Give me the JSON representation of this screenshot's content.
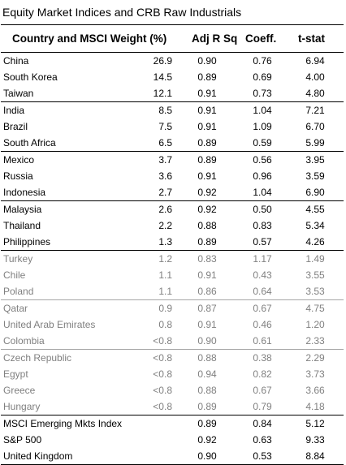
{
  "title": "Equity Market Indices and CRB Raw Industrials",
  "headers": {
    "country": "Country and MSCI Weight (%)",
    "adj_r_sq": "Adj R Sq.",
    "coeff": "Coeff.",
    "t_stat": "t-stat"
  },
  "rows": [
    {
      "country": "China",
      "weight": "26.9",
      "adj_r_sq": "0.90",
      "coeff": "0.76",
      "t_stat": "6.94",
      "style": "normal",
      "separator": "none"
    },
    {
      "country": "South Korea",
      "weight": "14.5",
      "adj_r_sq": "0.89",
      "coeff": "0.69",
      "t_stat": "4.00",
      "style": "normal",
      "separator": "none"
    },
    {
      "country": "Taiwan",
      "weight": "12.1",
      "adj_r_sq": "0.91",
      "coeff": "0.73",
      "t_stat": "4.80",
      "style": "normal",
      "separator": "none"
    },
    {
      "country": "India",
      "weight": "8.5",
      "adj_r_sq": "0.91",
      "coeff": "1.04",
      "t_stat": "7.21",
      "style": "normal",
      "separator": "line"
    },
    {
      "country": "Brazil",
      "weight": "7.5",
      "adj_r_sq": "0.91",
      "coeff": "1.09",
      "t_stat": "6.70",
      "style": "normal",
      "separator": "none"
    },
    {
      "country": "South Africa",
      "weight": "6.5",
      "adj_r_sq": "0.89",
      "coeff": "0.59",
      "t_stat": "5.99",
      "style": "normal",
      "separator": "none"
    },
    {
      "country": "Mexico",
      "weight": "3.7",
      "adj_r_sq": "0.89",
      "coeff": "0.56",
      "t_stat": "3.95",
      "style": "normal",
      "separator": "line"
    },
    {
      "country": "Russia",
      "weight": "3.6",
      "adj_r_sq": "0.91",
      "coeff": "0.96",
      "t_stat": "3.59",
      "style": "normal",
      "separator": "none"
    },
    {
      "country": "Indonesia",
      "weight": "2.7",
      "adj_r_sq": "0.92",
      "coeff": "1.04",
      "t_stat": "6.90",
      "style": "normal",
      "separator": "none"
    },
    {
      "country": "Malaysia",
      "weight": "2.6",
      "adj_r_sq": "0.92",
      "coeff": "0.50",
      "t_stat": "4.55",
      "style": "normal",
      "separator": "line"
    },
    {
      "country": "Thailand",
      "weight": "2.2",
      "adj_r_sq": "0.88",
      "coeff": "0.83",
      "t_stat": "5.34",
      "style": "normal",
      "separator": "none"
    },
    {
      "country": "Philippines",
      "weight": "1.3",
      "adj_r_sq": "0.89",
      "coeff": "0.57",
      "t_stat": "4.26",
      "style": "normal",
      "separator": "none"
    },
    {
      "country": "Turkey",
      "weight": "1.2",
      "adj_r_sq": "0.83",
      "coeff": "1.17",
      "t_stat": "1.49",
      "style": "grey",
      "separator": "line"
    },
    {
      "country": "Chile",
      "weight": "1.1",
      "adj_r_sq": "0.91",
      "coeff": "0.43",
      "t_stat": "3.55",
      "style": "grey",
      "separator": "none"
    },
    {
      "country": "Poland",
      "weight": "1.1",
      "adj_r_sq": "0.86",
      "coeff": "0.64",
      "t_stat": "3.53",
      "style": "grey",
      "separator": "none"
    },
    {
      "country": "Qatar",
      "weight": "0.9",
      "adj_r_sq": "0.87",
      "coeff": "0.67",
      "t_stat": "4.75",
      "style": "grey",
      "separator": "grey"
    },
    {
      "country": "United Arab Emirates",
      "weight": "0.8",
      "adj_r_sq": "0.91",
      "coeff": "0.46",
      "t_stat": "1.20",
      "style": "grey",
      "separator": "none"
    },
    {
      "country": "Colombia",
      "weight": "<0.8",
      "adj_r_sq": "0.90",
      "coeff": "0.61",
      "t_stat": "2.33",
      "style": "grey",
      "separator": "none"
    },
    {
      "country": "Czech Republic",
      "weight": "<0.8",
      "adj_r_sq": "0.88",
      "coeff": "0.38",
      "t_stat": "2.29",
      "style": "grey",
      "separator": "grey"
    },
    {
      "country": "Egypt",
      "weight": "<0.8",
      "adj_r_sq": "0.94",
      "coeff": "0.82",
      "t_stat": "3.73",
      "style": "grey",
      "separator": "none"
    },
    {
      "country": "Greece",
      "weight": "<0.8",
      "adj_r_sq": "0.88",
      "coeff": "0.67",
      "t_stat": "3.66",
      "style": "grey",
      "separator": "none"
    },
    {
      "country": "Hungary",
      "weight": "<0.8",
      "adj_r_sq": "0.89",
      "coeff": "0.79",
      "t_stat": "4.18",
      "style": "grey",
      "separator": "none"
    },
    {
      "country": "MSCI Emerging Mkts Index",
      "weight": "",
      "adj_r_sq": "0.89",
      "coeff": "0.84",
      "t_stat": "5.12",
      "style": "normal",
      "separator": "bold"
    },
    {
      "country": "S&P 500",
      "weight": "",
      "adj_r_sq": "0.92",
      "coeff": "0.63",
      "t_stat": "9.33",
      "style": "normal",
      "separator": "none"
    },
    {
      "country": "United Kingdom",
      "weight": "",
      "adj_r_sq": "0.90",
      "coeff": "0.53",
      "t_stat": "8.84",
      "style": "normal",
      "separator": "none"
    }
  ]
}
